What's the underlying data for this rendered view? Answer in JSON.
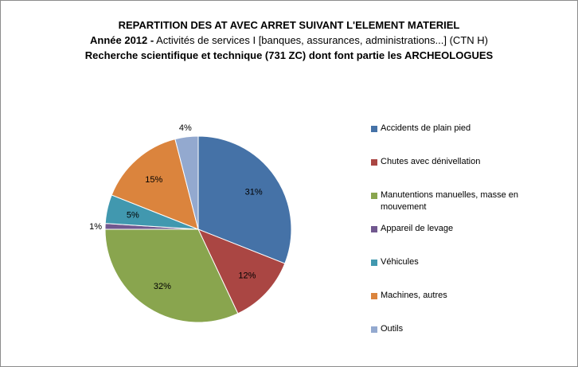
{
  "title": {
    "line1": "REPARTITION DES AT AVEC ARRET SUIVANT L'ELEMENT MATERIEL",
    "line2_bold": "Année 2012  -",
    "line2_rest": "  Activités de services I [banques,  assurances, administrations...] (CTN H)",
    "line3": "Recherche scientifique et technique (731 ZC) dont font partie les ARCHEOLOGUES"
  },
  "chart_data": {
    "type": "pie",
    "categories": [
      "Accidents de plain pied",
      "Chutes avec dénivellation",
      "Manutentions manuelles, masse en mouvement",
      "Appareil de levage",
      "Véhicules",
      "Machines, autres",
      "Outils"
    ],
    "values": [
      31,
      12,
      32,
      1,
      5,
      15,
      4
    ],
    "labels": [
      "31%",
      "12%",
      "32%",
      "1%",
      "5%",
      "15%",
      "4%"
    ],
    "colors": [
      "#4572a7",
      "#aa4643",
      "#89a54e",
      "#71588f",
      "#4198af",
      "#db843d",
      "#93a9cf"
    ],
    "legend_position": "right"
  }
}
